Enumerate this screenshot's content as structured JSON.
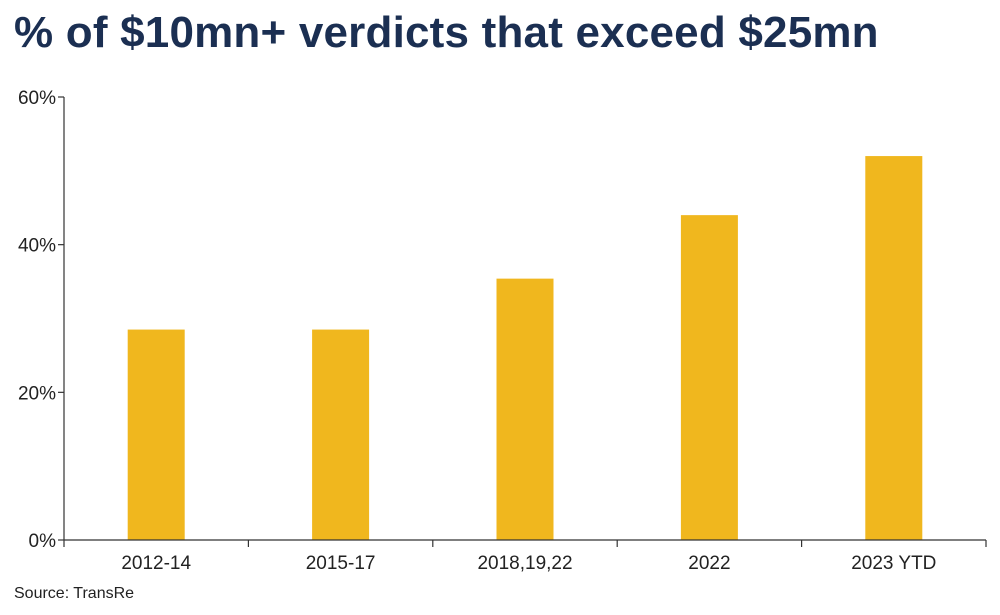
{
  "colors": {
    "title": "#1b2f52",
    "bar": "#f0b71e",
    "axis": "#333333",
    "text": "#222222"
  },
  "source": "Source: TransRe",
  "chart_data": {
    "type": "bar",
    "title": "% of $10mn+ verdicts that exceed $25mn",
    "categories": [
      "2012-14",
      "2015-17",
      "2018,19,22",
      "2022",
      "2023 YTD"
    ],
    "values": [
      28.5,
      28.5,
      35.4,
      44.0,
      52.0
    ],
    "ylim": [
      0,
      60
    ],
    "yticks": [
      0,
      20,
      40,
      60
    ],
    "ytick_labels": [
      "0%",
      "20%",
      "40%",
      "60%"
    ],
    "xlabel": "",
    "ylabel": "",
    "grid": false,
    "legend": "none"
  }
}
